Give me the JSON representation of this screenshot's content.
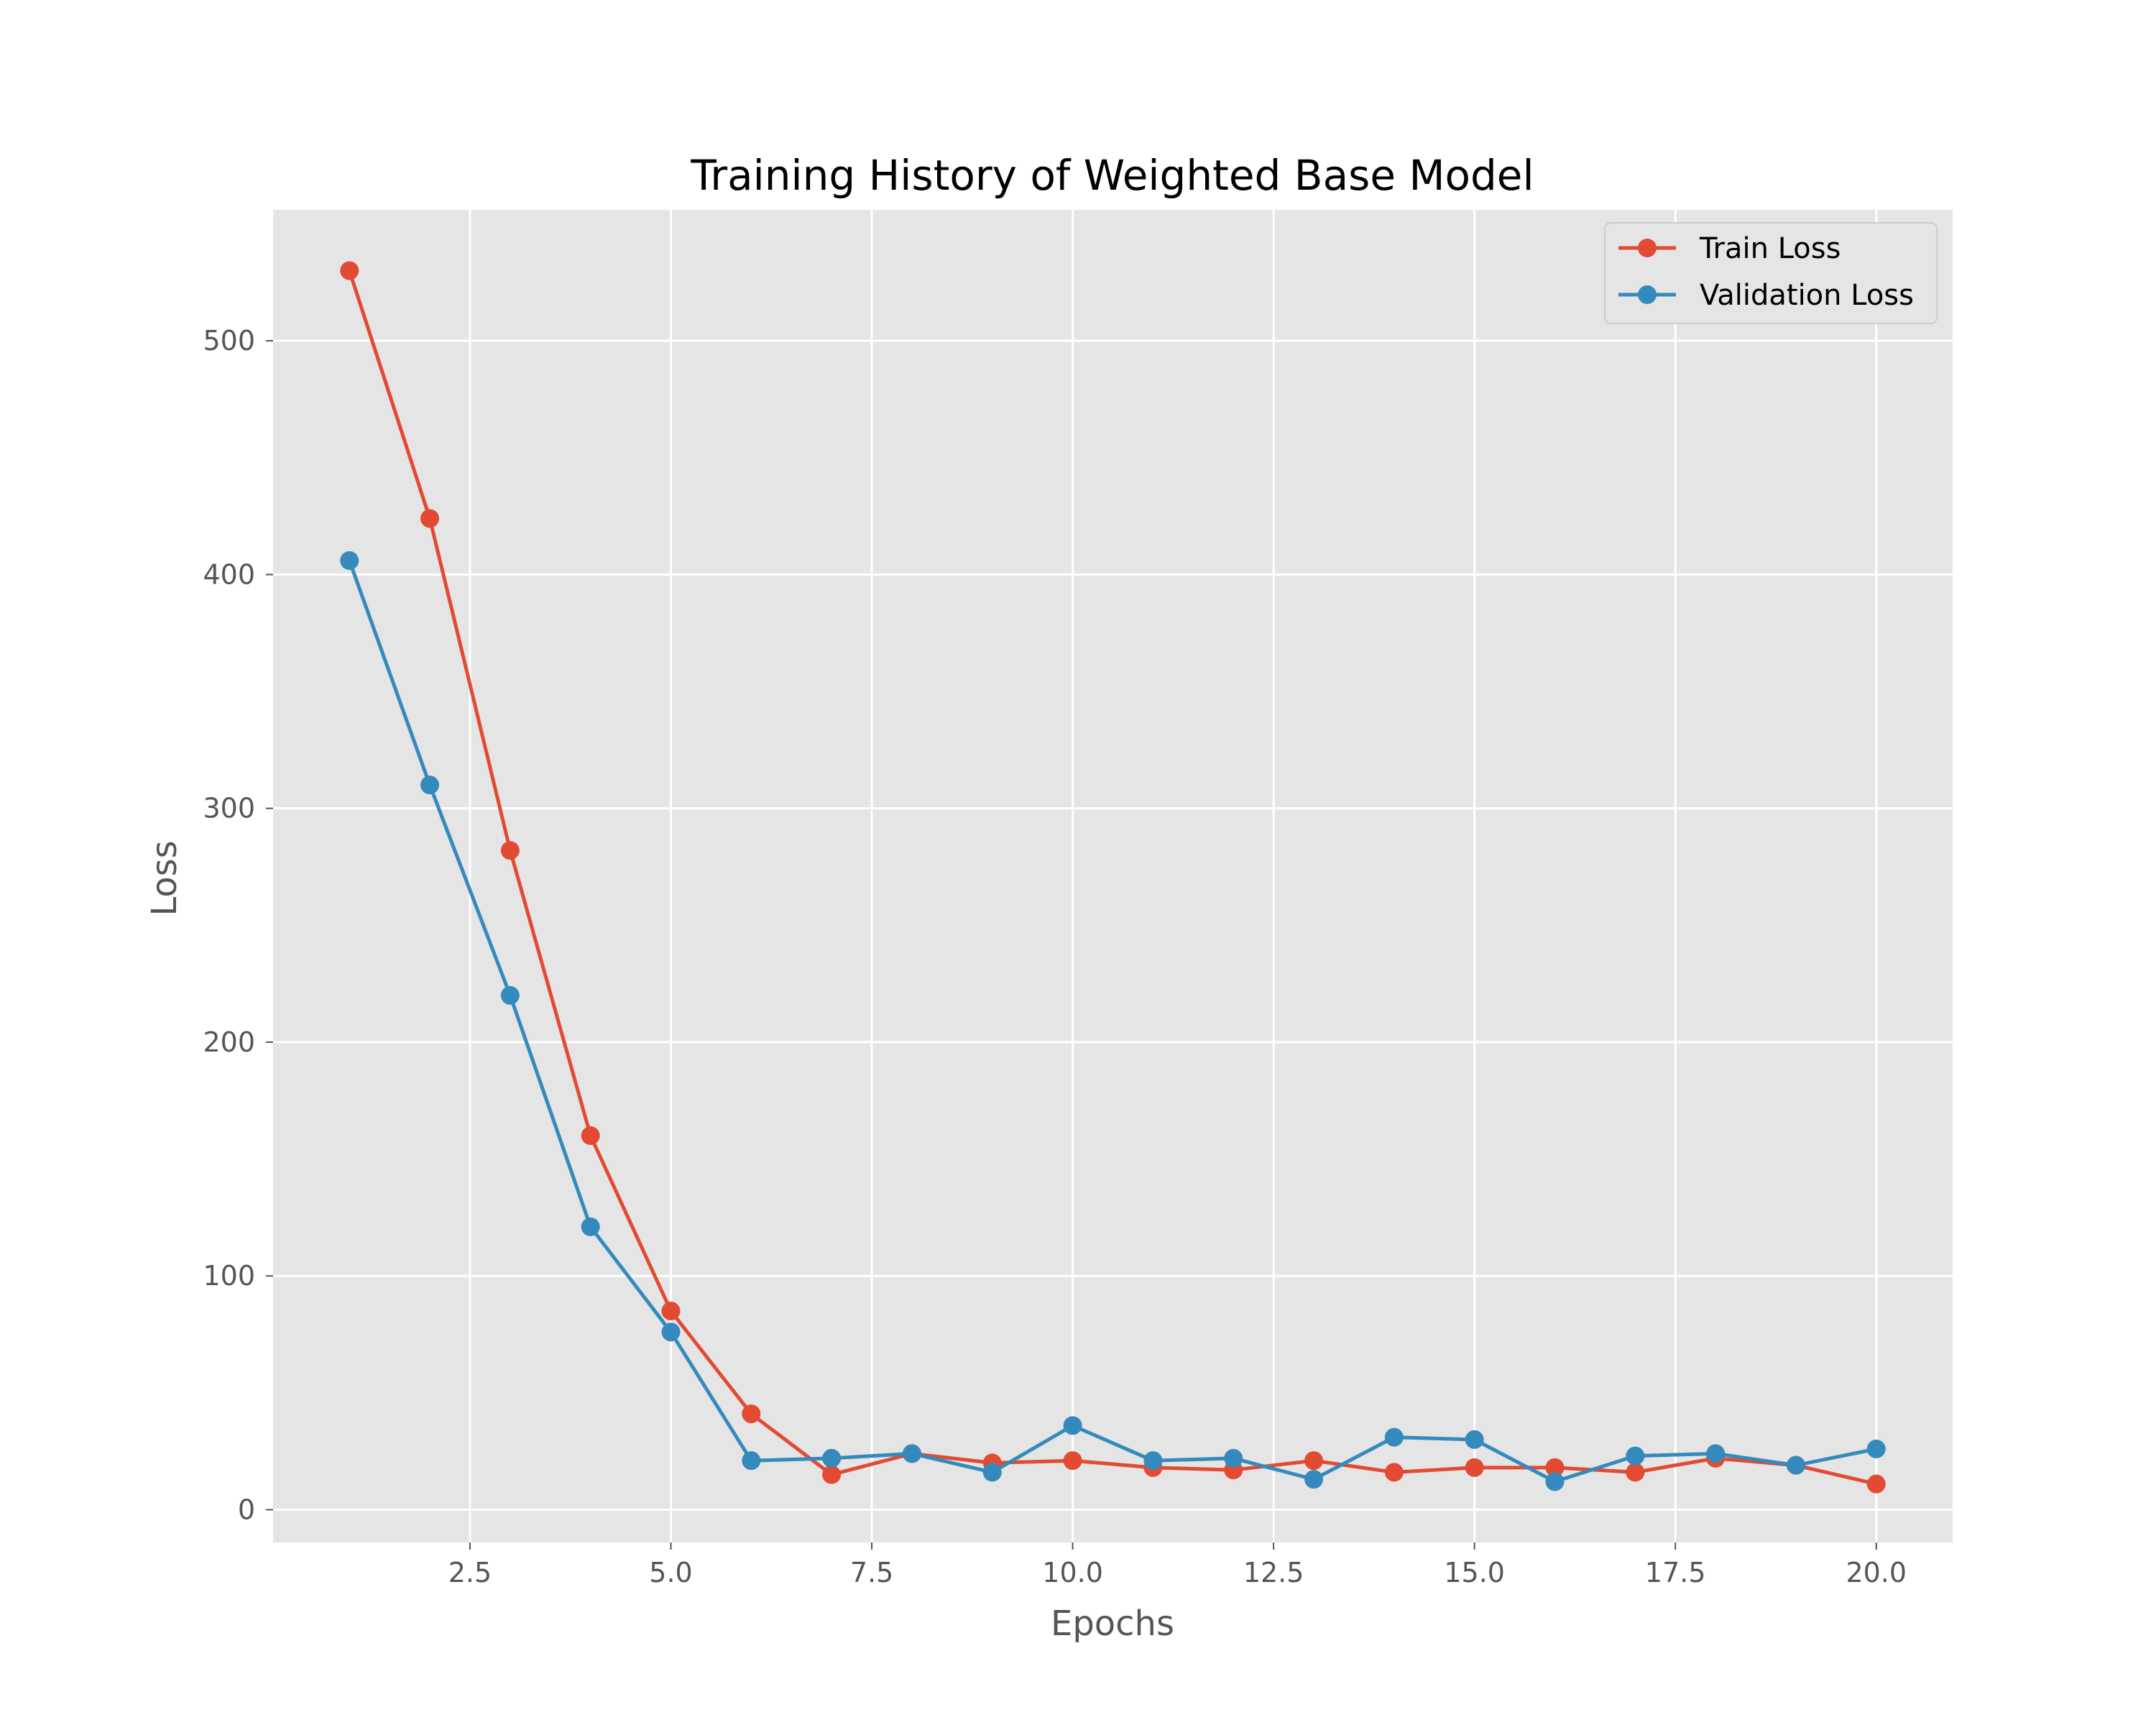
{
  "chart_data": {
    "type": "line",
    "title": "Training History of Weighted Base Model",
    "xlabel": "Epochs",
    "ylabel": "Loss",
    "x": [
      1,
      2,
      3,
      4,
      5,
      6,
      7,
      8,
      9,
      10,
      11,
      12,
      13,
      14,
      15,
      16,
      17,
      18,
      19,
      20
    ],
    "xlim": [
      0.05,
      20.95
    ],
    "ylim": [
      -14,
      556
    ],
    "xticks": [
      2.5,
      5.0,
      7.5,
      10.0,
      12.5,
      15.0,
      17.5,
      20.0
    ],
    "xtick_labels": [
      "2.5",
      "5.0",
      "7.5",
      "10.0",
      "12.5",
      "15.0",
      "17.5",
      "20.0"
    ],
    "yticks": [
      0,
      100,
      200,
      300,
      400,
      500
    ],
    "ytick_labels": [
      "0",
      "100",
      "200",
      "300",
      "400",
      "500"
    ],
    "grid": true,
    "legend_position": "top-right",
    "background_color": "#e5e5e5",
    "grid_color": "#ffffff",
    "series": [
      {
        "name": "Train Loss",
        "color": "#e24a33",
        "marker": "circle",
        "values": [
          530,
          424,
          282,
          160,
          85,
          41,
          15,
          24,
          20,
          21,
          18,
          17,
          21,
          16,
          18,
          18,
          16,
          22,
          19,
          11
        ]
      },
      {
        "name": "Validation Loss",
        "color": "#348abd",
        "marker": "circle",
        "values": [
          406,
          310,
          220,
          121,
          76,
          21,
          22,
          24,
          16,
          36,
          21,
          22,
          13,
          31,
          30,
          12,
          23,
          24,
          19,
          26
        ]
      }
    ]
  }
}
